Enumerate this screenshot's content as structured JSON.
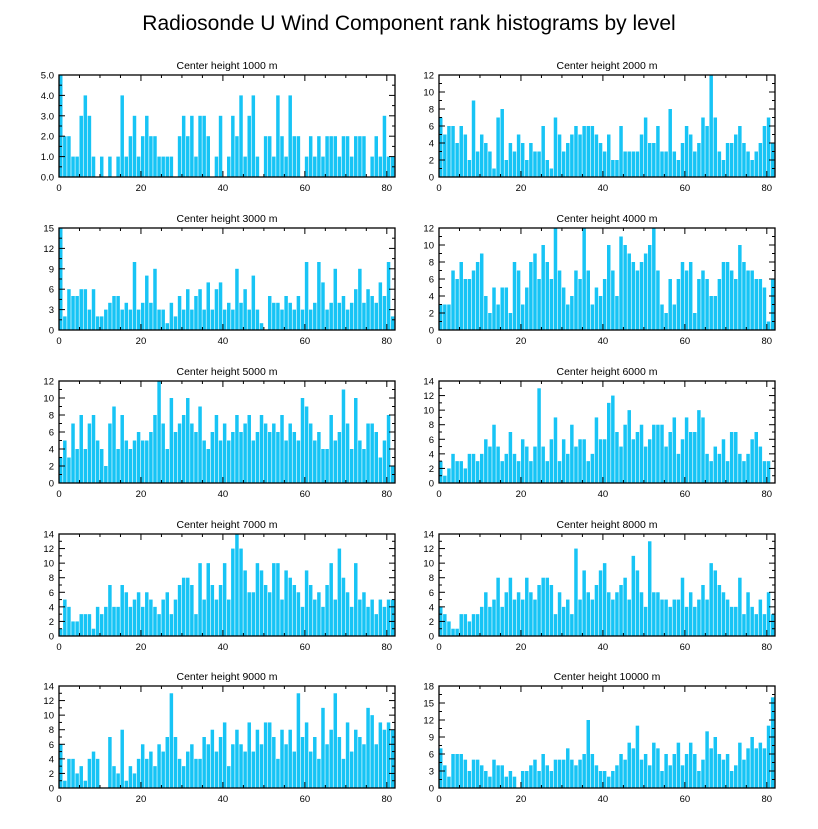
{
  "figure_title": "Radiosonde U Wind Component rank histograms by level",
  "bar_color": "#17c4f5",
  "chart_data": [
    {
      "type": "bar",
      "title": "Center height 1000 m",
      "xlim": [
        0,
        82
      ],
      "ylim": [
        0,
        5
      ],
      "xticks": [
        0,
        20,
        40,
        60,
        80
      ],
      "yticks": [
        0,
        1,
        2,
        3,
        4,
        5
      ],
      "ytick_labels": [
        "0.0",
        "1.0",
        "2.0",
        "3.0",
        "4.0",
        "5.0"
      ],
      "x_start": 0,
      "values": [
        5,
        2,
        2,
        1,
        1,
        3,
        4,
        3,
        1,
        0,
        1,
        0,
        1,
        0,
        1,
        4,
        1,
        2,
        3,
        1,
        2,
        3,
        2,
        2,
        1,
        1,
        1,
        1,
        0,
        2,
        3,
        2,
        3,
        1,
        3,
        3,
        2,
        0,
        1,
        3,
        0,
        1,
        3,
        2,
        4,
        1,
        3,
        4,
        1,
        0,
        2,
        2,
        1,
        4,
        2,
        1,
        4,
        2,
        2,
        0,
        1,
        2,
        1,
        2,
        1,
        2,
        2,
        2,
        1,
        2,
        2,
        1,
        2,
        2,
        2,
        0,
        1,
        2,
        1,
        3,
        1,
        1,
        1,
        2
      ]
    },
    {
      "type": "bar",
      "title": "Center height 2000 m",
      "xlim": [
        0,
        82
      ],
      "ylim": [
        0,
        12
      ],
      "xticks": [
        0,
        20,
        40,
        60,
        80
      ],
      "yticks": [
        0,
        2,
        4,
        6,
        8,
        10,
        12
      ],
      "ytick_labels": [
        "0",
        "2",
        "4",
        "6",
        "8",
        "10",
        "12"
      ],
      "x_start": 0,
      "values": [
        7,
        5,
        6,
        6,
        4,
        6,
        5,
        2,
        9,
        3,
        5,
        4,
        3,
        1,
        7,
        8,
        2,
        4,
        3,
        5,
        4,
        2,
        4,
        3,
        3,
        6,
        2,
        1,
        7,
        5,
        3,
        4,
        5,
        6,
        5,
        6,
        6,
        6,
        5,
        4,
        3,
        5,
        2,
        2,
        6,
        3,
        3,
        3,
        3,
        5,
        7,
        4,
        4,
        6,
        3,
        3,
        8,
        3,
        2,
        4,
        6,
        5,
        3,
        4,
        7,
        6,
        12,
        7,
        3,
        2,
        4,
        4,
        5,
        6,
        4,
        3,
        2,
        3,
        4,
        6,
        7,
        4,
        10
      ]
    },
    {
      "type": "bar",
      "title": "Center height 3000 m",
      "xlim": [
        0,
        82
      ],
      "ylim": [
        0,
        15
      ],
      "xticks": [
        0,
        20,
        40,
        60,
        80
      ],
      "yticks": [
        0,
        3,
        6,
        9,
        12,
        15
      ],
      "ytick_labels": [
        "0",
        "3",
        "6",
        "9",
        "12",
        "15"
      ],
      "x_start": 0,
      "values": [
        15,
        2,
        6,
        5,
        5,
        6,
        6,
        3,
        6,
        2,
        2,
        3,
        4,
        5,
        5,
        3,
        4,
        3,
        10,
        3,
        4,
        8,
        4,
        9,
        3,
        3,
        1,
        4,
        2,
        5,
        3,
        6,
        3,
        5,
        6,
        3,
        7,
        3,
        6,
        7,
        3,
        4,
        3,
        9,
        4,
        6,
        3,
        8,
        3,
        1,
        0,
        5,
        4,
        4,
        3,
        5,
        4,
        3,
        5,
        3,
        10,
        3,
        4,
        10,
        7,
        3,
        4,
        9,
        4,
        5,
        3,
        4,
        6,
        9,
        4,
        6,
        5,
        4,
        7,
        5,
        10,
        2,
        7
      ]
    },
    {
      "type": "bar",
      "title": "Center height 4000 m",
      "xlim": [
        0,
        82
      ],
      "ylim": [
        0,
        12
      ],
      "xticks": [
        0,
        20,
        40,
        60,
        80
      ],
      "yticks": [
        0,
        2,
        4,
        6,
        8,
        10,
        12
      ],
      "ytick_labels": [
        "0",
        "2",
        "4",
        "6",
        "8",
        "10",
        "12"
      ],
      "x_start": 0,
      "values": [
        3,
        3,
        3,
        7,
        6,
        8,
        6,
        6,
        7,
        8,
        9,
        4,
        2,
        5,
        3,
        5,
        5,
        2,
        8,
        7,
        3,
        5,
        8,
        9,
        6,
        10,
        8,
        6,
        12,
        7,
        5,
        3,
        4,
        7,
        6,
        12,
        7,
        3,
        5,
        4,
        6,
        10,
        7,
        4,
        11,
        10,
        9,
        8,
        7,
        8,
        9,
        10,
        12,
        7,
        3,
        2,
        6,
        3,
        6,
        8,
        7,
        8,
        2,
        6,
        7,
        6,
        4,
        4,
        6,
        8,
        8,
        7,
        6,
        10,
        8,
        7,
        7,
        6,
        6,
        5,
        1,
        6,
        6
      ]
    },
    {
      "type": "bar",
      "title": "Center height 5000 m",
      "xlim": [
        0,
        82
      ],
      "ylim": [
        0,
        12
      ],
      "xticks": [
        0,
        20,
        40,
        60,
        80
      ],
      "yticks": [
        0,
        2,
        4,
        6,
        8,
        10,
        12
      ],
      "ytick_labels": [
        "0",
        "2",
        "4",
        "6",
        "8",
        "10",
        "12"
      ],
      "x_start": 0,
      "values": [
        3,
        5,
        3,
        7,
        4,
        8,
        4,
        7,
        8,
        5,
        4,
        2,
        7,
        9,
        4,
        8,
        5,
        4,
        5,
        6,
        5,
        5,
        6,
        8,
        12,
        7,
        4,
        10,
        6,
        7,
        8,
        10,
        7,
        6,
        9,
        5,
        4,
        6,
        8,
        5,
        7,
        5,
        6,
        8,
        6,
        7,
        8,
        5,
        6,
        8,
        7,
        6,
        7,
        6,
        8,
        5,
        7,
        6,
        5,
        10,
        9,
        7,
        5,
        6,
        4,
        4,
        8,
        5,
        6,
        11,
        7,
        4,
        10,
        5,
        4,
        7,
        7,
        6,
        3,
        5,
        8,
        2
      ]
    },
    {
      "type": "bar",
      "title": "Center height 6000 m",
      "xlim": [
        0,
        82
      ],
      "ylim": [
        0,
        14
      ],
      "xticks": [
        0,
        20,
        40,
        60,
        80
      ],
      "yticks": [
        0,
        2,
        4,
        6,
        8,
        10,
        12,
        14
      ],
      "ytick_labels": [
        "0",
        "2",
        "4",
        "6",
        "8",
        "10",
        "12",
        "14"
      ],
      "x_start": 0,
      "values": [
        3,
        1,
        2,
        4,
        3,
        3,
        2,
        4,
        4,
        3,
        4,
        6,
        5,
        8,
        5,
        3,
        4,
        7,
        4,
        3,
        6,
        5,
        3,
        5,
        13,
        5,
        3,
        6,
        9,
        3,
        6,
        4,
        8,
        5,
        6,
        6,
        3,
        4,
        9,
        6,
        6,
        11,
        12,
        7,
        5,
        8,
        10,
        6,
        7,
        8,
        5,
        6,
        8,
        8,
        8,
        5,
        7,
        9,
        4,
        6,
        9,
        7,
        7,
        10,
        9,
        4,
        3,
        5,
        4,
        6,
        3,
        7,
        7,
        4,
        3,
        4,
        6,
        7,
        5,
        3,
        3
      ]
    },
    {
      "type": "bar",
      "title": "Center height 7000 m",
      "xlim": [
        0,
        82
      ],
      "ylim": [
        0,
        14
      ],
      "xticks": [
        0,
        20,
        40,
        60,
        80
      ],
      "yticks": [
        0,
        2,
        4,
        6,
        8,
        10,
        12,
        14
      ],
      "ytick_labels": [
        "0",
        "2",
        "4",
        "6",
        "8",
        "10",
        "12",
        "14"
      ],
      "x_start": 0,
      "values": [
        1,
        5,
        4,
        2,
        2,
        3,
        3,
        3,
        1,
        4,
        3,
        4,
        7,
        4,
        4,
        7,
        6,
        4,
        5,
        6,
        4,
        6,
        5,
        4,
        3,
        5,
        6,
        3,
        5,
        7,
        8,
        8,
        7,
        3,
        10,
        5,
        10,
        7,
        5,
        7,
        10,
        5,
        12,
        14,
        12,
        9,
        6,
        6,
        10,
        9,
        7,
        6,
        10,
        10,
        5,
        9,
        8,
        7,
        6,
        4,
        9,
        7,
        5,
        6,
        4,
        7,
        10,
        5,
        12,
        8,
        6,
        4,
        10,
        5,
        6,
        4,
        5,
        3,
        5,
        4,
        5,
        5
      ]
    },
    {
      "type": "bar",
      "title": "Center height 8000 m",
      "xlim": [
        0,
        82
      ],
      "ylim": [
        0,
        14
      ],
      "xticks": [
        0,
        20,
        40,
        60,
        80
      ],
      "yticks": [
        0,
        2,
        4,
        6,
        8,
        10,
        12,
        14
      ],
      "ytick_labels": [
        "0",
        "2",
        "4",
        "6",
        "8",
        "10",
        "12",
        "14"
      ],
      "x_start": 0,
      "values": [
        4,
        3,
        2,
        1,
        1,
        3,
        3,
        2,
        3,
        3,
        4,
        6,
        4,
        5,
        8,
        4,
        6,
        8,
        5,
        6,
        5,
        8,
        6,
        5,
        7,
        8,
        8,
        7,
        3,
        6,
        4,
        5,
        3,
        12,
        5,
        9,
        6,
        5,
        7,
        9,
        10,
        6,
        5,
        6,
        7,
        8,
        5,
        11,
        9,
        6,
        4,
        13,
        6,
        6,
        5,
        5,
        4,
        5,
        5,
        8,
        4,
        6,
        4,
        5,
        7,
        5,
        10,
        9,
        7,
        6,
        5,
        4,
        4,
        8,
        3,
        6,
        4,
        3,
        5,
        3,
        6,
        3,
        6
      ]
    },
    {
      "type": "bar",
      "title": "Center height 9000 m",
      "xlim": [
        0,
        82
      ],
      "ylim": [
        0,
        14
      ],
      "xticks": [
        0,
        20,
        40,
        60,
        80
      ],
      "yticks": [
        0,
        2,
        4,
        6,
        8,
        10,
        12,
        14
      ],
      "ytick_labels": [
        "0",
        "2",
        "4",
        "6",
        "8",
        "10",
        "12",
        "14"
      ],
      "x_start": 0,
      "values": [
        6,
        1,
        4,
        4,
        2,
        3,
        1,
        4,
        5,
        4,
        0,
        0,
        7,
        3,
        2,
        8,
        1,
        3,
        2,
        4,
        6,
        4,
        5,
        3,
        6,
        5,
        7,
        13,
        7,
        4,
        3,
        5,
        6,
        4,
        4,
        7,
        6,
        8,
        5,
        7,
        9,
        3,
        6,
        8,
        6,
        5,
        9,
        5,
        8,
        6,
        9,
        9,
        7,
        4,
        8,
        6,
        8,
        5,
        13,
        7,
        9,
        5,
        7,
        4,
        11,
        6,
        8,
        13,
        7,
        4,
        9,
        5,
        8,
        7,
        6,
        11,
        10,
        6,
        9,
        8,
        9,
        8,
        6
      ]
    },
    {
      "type": "bar",
      "title": "Center height 10000 m",
      "xlim": [
        0,
        82
      ],
      "ylim": [
        0,
        18
      ],
      "xticks": [
        0,
        20,
        40,
        60,
        80
      ],
      "yticks": [
        0,
        3,
        6,
        9,
        12,
        15,
        18
      ],
      "ytick_labels": [
        "0",
        "3",
        "6",
        "9",
        "12",
        "15",
        "18"
      ],
      "x_start": 0,
      "values": [
        7,
        4,
        2,
        6,
        6,
        6,
        5,
        3,
        5,
        5,
        4,
        3,
        2,
        5,
        4,
        4,
        2,
        3,
        2,
        0,
        3,
        3,
        4,
        5,
        3,
        6,
        4,
        3,
        5,
        5,
        5,
        7,
        5,
        4,
        5,
        6,
        12,
        6,
        4,
        3,
        3,
        2,
        3,
        4,
        6,
        5,
        8,
        7,
        11,
        5,
        6,
        4,
        8,
        7,
        3,
        6,
        4,
        6,
        8,
        4,
        6,
        8,
        6,
        3,
        5,
        10,
        7,
        9,
        6,
        5,
        6,
        3,
        4,
        8,
        5,
        7,
        9,
        7,
        8,
        7,
        11,
        16,
        9
      ]
    }
  ]
}
